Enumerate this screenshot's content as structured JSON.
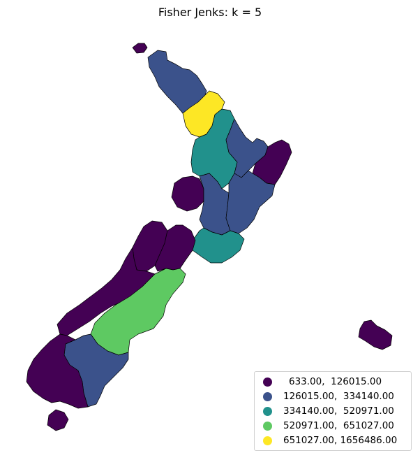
{
  "title": "Fisher Jenks: k = 5",
  "colors": {
    "c1": "#440154",
    "c2": "#3b528b",
    "c3": "#21918c",
    "c4": "#5ec962",
    "c5": "#fde725"
  },
  "legend": [
    {
      "label": "633.00,  126015.00",
      "color": "#440154"
    },
    {
      "label": "126015.00,  334140.00",
      "color": "#3b528b"
    },
    {
      "label": "334140.00,  520971.00",
      "color": "#21918c"
    },
    {
      "label": "520971.00,  651027.00",
      "color": "#5ec962"
    },
    {
      "label": "651027.00, 1656486.00",
      "color": "#fde725"
    }
  ]
}
